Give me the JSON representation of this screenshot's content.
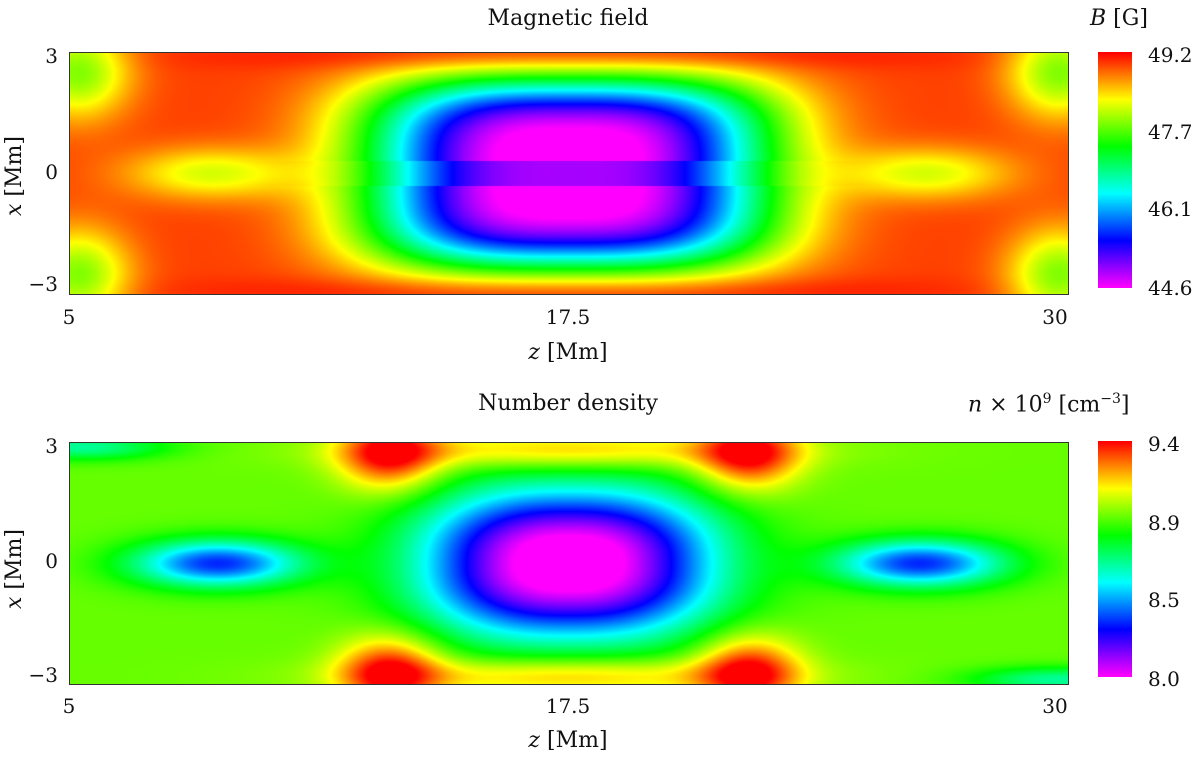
{
  "chart_data": [
    {
      "type": "heatmap",
      "title": "Magnetic field",
      "colorbar_label_var": "B",
      "colorbar_label_unit": "[G]",
      "xlabel_var": "z",
      "xlabel_unit": "[Mm]",
      "ylabel_var": "x",
      "ylabel_unit": "[Mm]",
      "xlim": [
        5,
        30
      ],
      "ylim": [
        -3.3,
        3.3
      ],
      "x_ticks": [
        "5",
        "17.5",
        "30"
      ],
      "y_ticks": [
        "3",
        "0",
        "−3"
      ],
      "colorbar_ticks": [
        "49.2",
        "47.7",
        "46.1",
        "44.6"
      ],
      "value_range": [
        44.6,
        49.2
      ],
      "colormap": "rainbow: magenta (low) → blue → cyan → green → yellow → red (high)",
      "description_values": {
        "center_min_region": "z 13–22, x ±2.5 (≈44.6 at z 17.5, x ±1)",
        "edges": "≈49.2 near z 8–12 and z 23–27, x ±2"
      }
    },
    {
      "type": "heatmap",
      "title": "Number density",
      "colorbar_label_var": "n",
      "colorbar_label_mid": "× 10",
      "colorbar_label_exp": "9",
      "colorbar_label_unit": "[cm",
      "colorbar_label_unit_exp": "−3",
      "colorbar_label_unit_close": "]",
      "xlabel_var": "z",
      "xlabel_unit": "[Mm]",
      "ylabel_var": "x",
      "ylabel_unit": "[Mm]",
      "xlim": [
        5,
        30
      ],
      "ylim": [
        -3.3,
        3.3
      ],
      "x_ticks": [
        "5",
        "17.5",
        "30"
      ],
      "y_ticks": [
        "3",
        "0",
        "−3"
      ],
      "colorbar_ticks": [
        "9.4",
        "8.9",
        "8.5",
        "8.0"
      ],
      "value_range": [
        8.0,
        9.4
      ],
      "colormap": "rainbow: magenta (low) → blue → cyan → green → yellow → red (high)",
      "description_values": {
        "center_min": "≈8.0 at z 17.5, x 0",
        "side_minima": "≈8.4 at z ≈8.5 and z ≈26.5, x 0",
        "maxima": "≈9.4 near z 13 and z 22 at x ±3"
      }
    }
  ]
}
